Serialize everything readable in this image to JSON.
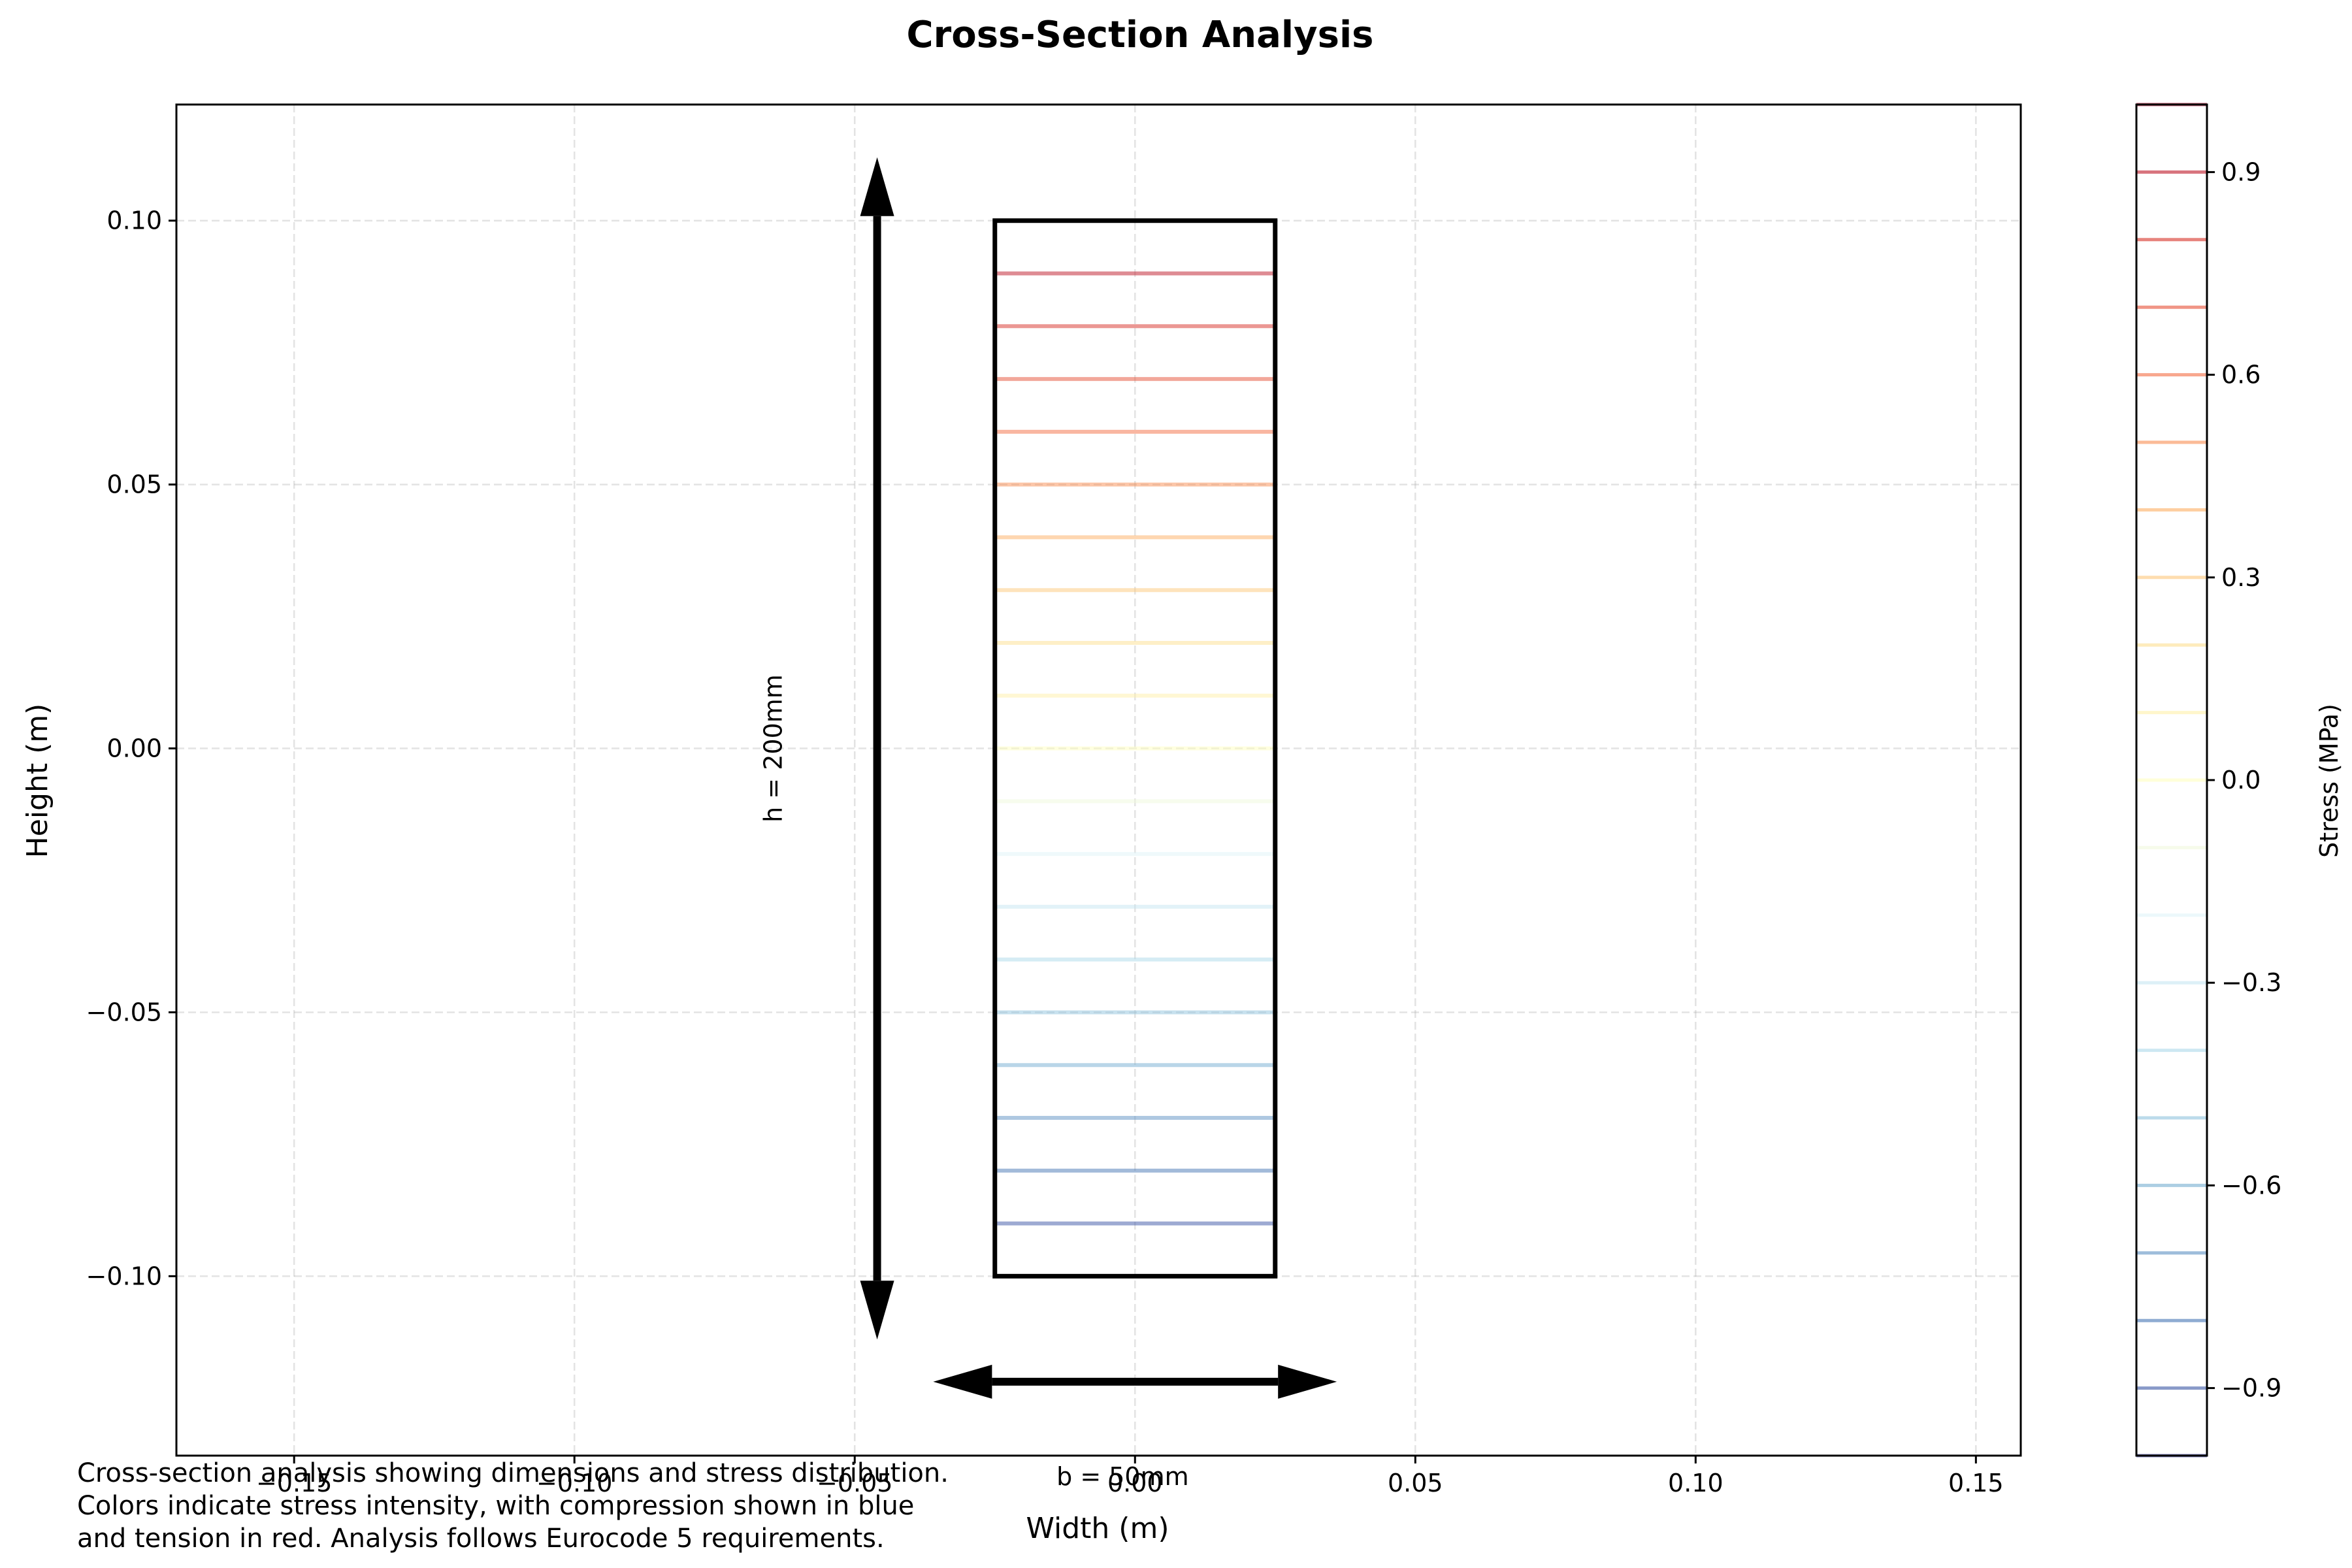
{
  "chart_data": {
    "type": "line",
    "title": "Cross-Section Analysis",
    "xlabel": "Width (m)",
    "ylabel": "Height (m)",
    "xlim": [
      -0.171,
      0.158
    ],
    "ylim": [
      -0.134,
      0.122
    ],
    "x_ticks": [
      -0.15,
      -0.1,
      -0.05,
      0.0,
      0.05,
      0.1,
      0.15
    ],
    "x_tick_labels": [
      "−0.15",
      "−0.10",
      "−0.05",
      "0.00",
      "0.05",
      "0.10",
      "0.15"
    ],
    "y_ticks": [
      -0.1,
      -0.05,
      0.0,
      0.05,
      0.1
    ],
    "y_tick_labels": [
      "−0.10",
      "−0.05",
      "0.00",
      "0.05",
      "0.10"
    ],
    "grid": true,
    "section": {
      "x_min": -0.025,
      "x_max": 0.025,
      "y_min": -0.1,
      "y_max": 0.1
    },
    "stress_lines": {
      "x_range": [
        -0.025,
        0.025
      ],
      "y": [
        -0.1,
        -0.09,
        -0.08,
        -0.07,
        -0.06,
        -0.05,
        -0.04,
        -0.03,
        -0.02,
        -0.01,
        0.0,
        0.01,
        0.02,
        0.03,
        0.04,
        0.05,
        0.06,
        0.07,
        0.08,
        0.09,
        0.1
      ],
      "stress": [
        -1.0,
        -0.9,
        -0.8,
        -0.7,
        -0.6,
        -0.5,
        -0.4,
        -0.3,
        -0.2,
        -0.1,
        0.0,
        0.1,
        0.2,
        0.3,
        0.4,
        0.5,
        0.6,
        0.7,
        0.8,
        0.9,
        1.0
      ]
    },
    "height_arrow": {
      "x": -0.046,
      "y_from": -0.112,
      "y_to": 0.112,
      "label": "h = 200mm",
      "label_x": -0.063,
      "label_y": 0.0
    },
    "width_arrow": {
      "y": -0.12,
      "x_from": -0.036,
      "x_to": 0.036,
      "label": "b = 50mm",
      "label_x": -0.014,
      "label_y": -0.1396
    },
    "colorbar": {
      "label": "Stress (MPa)",
      "range": [
        -1.0,
        1.0
      ],
      "ticks": [
        -0.9,
        -0.6,
        -0.3,
        0.0,
        0.3,
        0.6,
        0.9
      ],
      "tick_labels": [
        "−0.9",
        "−0.6",
        "−0.3",
        "0.0",
        "0.3",
        "0.6",
        "0.9"
      ],
      "levels": [
        -1.0,
        -0.9,
        -0.8,
        -0.7,
        -0.6,
        -0.5,
        -0.4,
        -0.3,
        -0.2,
        -0.1,
        0.0,
        0.1,
        0.2,
        0.3,
        0.4,
        0.5,
        0.6,
        0.7,
        0.8,
        0.9,
        1.0
      ]
    },
    "colormap_stops": [
      "#313695",
      "#4575b4",
      "#74add1",
      "#abd9e9",
      "#e0f3f8",
      "#ffffbf",
      "#fee090",
      "#fdae61",
      "#f46d43",
      "#d73027",
      "#a50026"
    ]
  },
  "caption": [
    "Cross-section analysis showing dimensions and stress distribution.",
    "Colors indicate stress intensity, with compression shown in blue",
    "and tension in red. Analysis follows Eurocode 5 requirements."
  ]
}
